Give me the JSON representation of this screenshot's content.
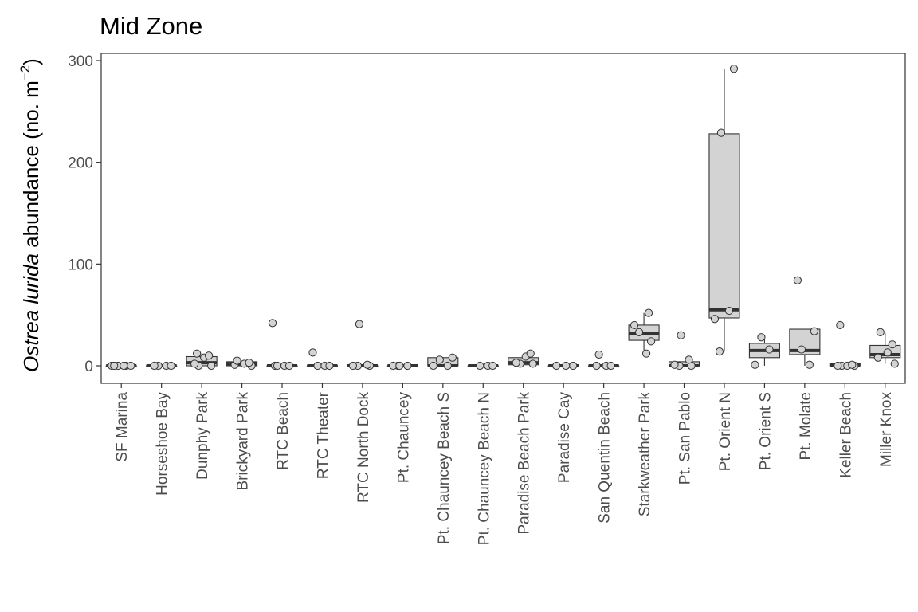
{
  "chart_data": {
    "type": "box",
    "title": "Mid Zone",
    "ylabel": {
      "italic": "Ostrea lurida",
      "rest": " abundance (no. m",
      "sup": "−2",
      "close": ")"
    },
    "xlabel": "",
    "ylim": [
      -16,
      300
    ],
    "yticks": [
      0,
      100,
      200,
      300
    ],
    "grid": false,
    "legend": "none",
    "colors": {
      "box_fill": "#d3d3d3",
      "box_line": "#333333",
      "point_fill": "#d3d3d3",
      "point_line": "#333333",
      "axis": "#333333"
    },
    "categories": [
      "SF Marina",
      "Horseshoe Bay",
      "Dunphy Park",
      "Brickyard Park",
      "RTC Beach",
      "RTC Theater",
      "RTC North Dock",
      "Pt. Chauncey",
      "Pt. Chauncey Beach S",
      "Pt. Chauncey Beach N",
      "Paradise Beach Park",
      "Paradise Cay",
      "San Quentin Beach",
      "Starkweather Park",
      "Pt. San Pablo",
      "Pt. Orient N",
      "Pt. Orient S",
      "Pt. Molate",
      "Keller Beach",
      "Miller Knox"
    ],
    "boxes": [
      {
        "category": "SF Marina",
        "min": 0,
        "q1": 0,
        "median": 0,
        "q3": 0,
        "max": 0
      },
      {
        "category": "Horseshoe Bay",
        "min": 0,
        "q1": 0,
        "median": 0,
        "q3": 0,
        "max": 0
      },
      {
        "category": "Dunphy Park",
        "min": 0,
        "q1": 0,
        "median": 3,
        "q3": 9,
        "max": 12
      },
      {
        "category": "Brickyard Park",
        "min": 0,
        "q1": 0,
        "median": 2,
        "q3": 4,
        "max": 5
      },
      {
        "category": "RTC Beach",
        "min": 0,
        "q1": 0,
        "median": 0,
        "q3": 0,
        "max": 0
      },
      {
        "category": "RTC Theater",
        "min": 0,
        "q1": 0,
        "median": 0,
        "q3": 0,
        "max": 0
      },
      {
        "category": "RTC North Dock",
        "min": 0,
        "q1": 0,
        "median": 0,
        "q3": 0,
        "max": 0
      },
      {
        "category": "Pt. Chauncey",
        "min": 0,
        "q1": 0,
        "median": 0,
        "q3": 0,
        "max": 0
      },
      {
        "category": "Pt. Chauncey Beach S",
        "min": 0,
        "q1": 0,
        "median": 0,
        "q3": 8,
        "max": 8
      },
      {
        "category": "Pt. Chauncey Beach N",
        "min": 0,
        "q1": 0,
        "median": 0,
        "q3": 0,
        "max": 0
      },
      {
        "category": "Paradise Beach Park",
        "min": 0,
        "q1": 1,
        "median": 3,
        "q3": 8,
        "max": 12
      },
      {
        "category": "Paradise Cay",
        "min": 0,
        "q1": 0,
        "median": 0,
        "q3": 0,
        "max": 0
      },
      {
        "category": "San Quentin Beach",
        "min": 0,
        "q1": 0,
        "median": 0,
        "q3": 0,
        "max": 0
      },
      {
        "category": "Starkweather Park",
        "min": 12,
        "q1": 25,
        "median": 32,
        "q3": 40,
        "max": 52
      },
      {
        "category": "Pt. San Pablo",
        "min": 0,
        "q1": 0,
        "median": 0,
        "q3": 4,
        "max": 4
      },
      {
        "category": "Pt. Orient N",
        "min": 14,
        "q1": 47,
        "median": 55,
        "q3": 228,
        "max": 292
      },
      {
        "category": "Pt. Orient S",
        "min": 0,
        "q1": 8,
        "median": 15,
        "q3": 22,
        "max": 28
      },
      {
        "category": "Pt. Molate",
        "min": 0,
        "q1": 11,
        "median": 15,
        "q3": 36,
        "max": 36
      },
      {
        "category": "Keller Beach",
        "min": 0,
        "q1": 0,
        "median": 0,
        "q3": 2,
        "max": 3
      },
      {
        "category": "Miller Knox",
        "min": 2,
        "q1": 8,
        "median": 11,
        "q3": 20,
        "max": 32
      }
    ],
    "points": [
      {
        "category": "SF Marina",
        "values": [
          0,
          0,
          0,
          0,
          0,
          0
        ]
      },
      {
        "category": "Horseshoe Bay",
        "values": [
          0,
          0,
          0,
          0
        ]
      },
      {
        "category": "Dunphy Park",
        "values": [
          0,
          0,
          2,
          8,
          10,
          12
        ]
      },
      {
        "category": "Brickyard Park",
        "values": [
          0,
          1,
          2,
          3,
          5
        ]
      },
      {
        "category": "RTC Beach",
        "values": [
          0,
          0,
          0,
          0,
          42
        ]
      },
      {
        "category": "RTC Theater",
        "values": [
          0,
          0,
          0,
          13
        ]
      },
      {
        "category": "RTC North Dock",
        "values": [
          0,
          0,
          0,
          1,
          41
        ]
      },
      {
        "category": "Pt. Chauncey",
        "values": [
          0,
          0,
          0,
          0
        ]
      },
      {
        "category": "Pt. Chauncey Beach S",
        "values": [
          0,
          0,
          6,
          8
        ]
      },
      {
        "category": "Pt. Chauncey Beach N",
        "values": [
          0,
          0,
          0
        ]
      },
      {
        "category": "Paradise Beach Park",
        "values": [
          2,
          2,
          3,
          9,
          12
        ]
      },
      {
        "category": "Paradise Cay",
        "values": [
          0,
          0,
          0
        ]
      },
      {
        "category": "San Quentin Beach",
        "values": [
          0,
          0,
          0,
          11
        ]
      },
      {
        "category": "Starkweather Park",
        "values": [
          12,
          24,
          33,
          40,
          52
        ]
      },
      {
        "category": "Pt. San Pablo",
        "values": [
          0,
          0,
          1,
          6,
          30
        ]
      },
      {
        "category": "Pt. Orient N",
        "values": [
          14,
          46,
          54,
          229,
          292
        ]
      },
      {
        "category": "Pt. Orient S",
        "values": [
          1,
          16,
          28
        ]
      },
      {
        "category": "Pt. Molate",
        "values": [
          1,
          16,
          34,
          84
        ]
      },
      {
        "category": "Keller Beach",
        "values": [
          0,
          0,
          0,
          0,
          1,
          40
        ]
      },
      {
        "category": "Miller Knox",
        "values": [
          2,
          8,
          13,
          21,
          33
        ]
      }
    ]
  }
}
